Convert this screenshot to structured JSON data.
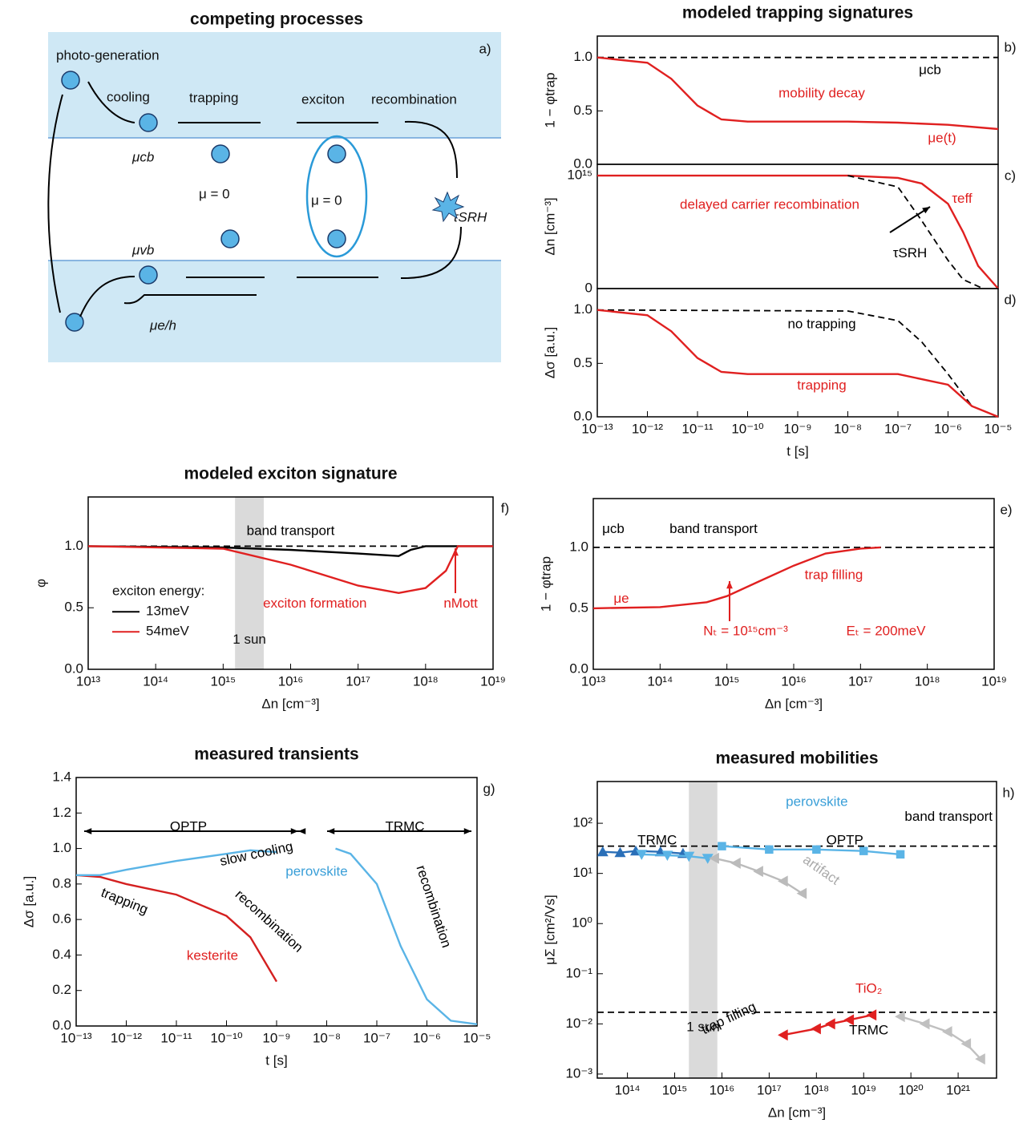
{
  "diagram": {
    "title": "competing processes",
    "panel_label": "a)",
    "labels": {
      "photo_generation": "photo-generation",
      "cooling": "cooling",
      "trapping": "trapping",
      "exciton": "exciton",
      "recombination": "recombination",
      "mu_cb": "μcb",
      "mu_zero_trap": "μ = 0",
      "mu_zero_exciton": "μ = 0",
      "mu_vb": "μvb",
      "mu_eh": "μe/h",
      "tau_srh": "τSRH"
    }
  },
  "chart_data": [
    {
      "type": "line",
      "title": "modeled trapping signatures",
      "panel_label": "b)",
      "ylabel": "1 − φtrap",
      "xscale": "log",
      "xlim": [
        1e-13,
        1e-05
      ],
      "ylim": [
        0,
        1.2
      ],
      "yticks": [
        {
          "value": 0,
          "label": "0.0"
        },
        0.5,
        {
          "value": 1,
          "label": "1.0"
        }
      ],
      "series": [
        {
          "color": "#000000",
          "dash": true,
          "x": [
            1e-13,
            1e-05
          ],
          "values": [
            1,
            1
          ]
        },
        {
          "color": "#e02020",
          "x": [
            1e-13,
            1e-12,
            3e-12,
            1e-11,
            3e-11,
            1e-10,
            1e-08,
            1e-07,
            1e-06,
            1e-05
          ],
          "values": [
            1.0,
            0.95,
            0.8,
            0.55,
            0.42,
            0.4,
            0.4,
            0.39,
            0.37,
            0.33
          ]
        }
      ],
      "annotations": [
        {
          "text": "mobility decay",
          "color": "#e02020"
        },
        {
          "text": "μcb",
          "color": "#000000"
        },
        {
          "text": "μe(t)",
          "color": "#e02020"
        }
      ]
    },
    {
      "type": "line",
      "panel_label": "c)",
      "ylabel": "Δn [cm⁻³]",
      "xscale": "log",
      "xlim": [
        1e-13,
        1e-05
      ],
      "ylim": [
        0,
        1100000000000000.0
      ],
      "yticks": [
        0,
        {
          "value": 1000000000000000.0,
          "label": "10¹⁵"
        }
      ],
      "series": [
        {
          "color": "#e02020",
          "x": [
            1e-13,
            1e-08,
            1e-07,
            3e-07,
            1e-06,
            2e-06,
            4e-06,
            1e-05
          ],
          "values": [
            1000000000000000.0,
            1000000000000000.0,
            980000000000000.0,
            930000000000000.0,
            750000000000000.0,
            500000000000000.0,
            200000000000000.0,
            0
          ]
        },
        {
          "color": "#000000",
          "dash": true,
          "x": [
            1e-08,
            1e-07,
            3e-07,
            1e-06,
            2e-06,
            5e-06
          ],
          "values": [
            1000000000000000.0,
            900000000000000.0,
            600000000000000.0,
            250000000000000.0,
            80000000000000.0,
            0
          ]
        }
      ],
      "annotations": [
        {
          "text": "delayed carrier recombination",
          "color": "#e02020"
        },
        {
          "text": "τeff",
          "color": "#e02020"
        },
        {
          "text": "τSRH",
          "color": "#000000"
        }
      ]
    },
    {
      "type": "line",
      "panel_label": "d)",
      "ylabel": "Δσ [a.u.]",
      "xlabel": "t [s]",
      "xscale": "log",
      "xlim": [
        1e-13,
        1e-05
      ],
      "ylim": [
        0,
        1.2
      ],
      "yticks": [
        {
          "value": 0,
          "label": "0.0"
        },
        0.5,
        {
          "value": 1,
          "label": "1.0"
        }
      ],
      "xticks": [
        {
          "value": 1e-13,
          "label": "10⁻¹³"
        },
        {
          "value": 1e-12,
          "label": "10⁻¹²"
        },
        {
          "value": 1e-11,
          "label": "10⁻¹¹"
        },
        {
          "value": 1e-10,
          "label": "10⁻¹⁰"
        },
        {
          "value": 1e-09,
          "label": "10⁻⁹"
        },
        {
          "value": 1e-08,
          "label": "10⁻⁸"
        },
        {
          "value": 1e-07,
          "label": "10⁻⁷"
        },
        {
          "value": 1e-06,
          "label": "10⁻⁶"
        },
        {
          "value": 1e-05,
          "label": "10⁻⁵"
        }
      ],
      "series": [
        {
          "color": "#000000",
          "dash": true,
          "x": [
            1e-13,
            1e-08,
            1e-07,
            3e-07,
            1e-06,
            3e-06,
            1e-05
          ],
          "values": [
            1.0,
            0.99,
            0.9,
            0.7,
            0.4,
            0.1,
            0
          ]
        },
        {
          "color": "#e02020",
          "x": [
            1e-13,
            1e-12,
            3e-12,
            1e-11,
            3e-11,
            1e-10,
            1e-08,
            1e-07,
            1e-06,
            3e-06,
            1e-05
          ],
          "values": [
            1.0,
            0.95,
            0.8,
            0.55,
            0.42,
            0.4,
            0.4,
            0.4,
            0.3,
            0.1,
            0
          ]
        }
      ],
      "annotations": [
        {
          "text": "no trapping",
          "color": "#000000"
        },
        {
          "text": "trapping",
          "color": "#e02020"
        }
      ]
    },
    {
      "type": "line",
      "title": "modeled exciton signature",
      "panel_label": "f)",
      "ylabel": "φ",
      "xlabel": "Δn [cm⁻³]",
      "xscale": "log",
      "xlim": [
        10000000000000.0,
        1e+19
      ],
      "ylim": [
        0,
        1.4
      ],
      "yticks": [
        {
          "value": 0,
          "label": "0.0"
        },
        0.5,
        {
          "value": 1,
          "label": "1.0"
        }
      ],
      "xticks": [
        {
          "value": 10000000000000.0,
          "label": "10¹³"
        },
        {
          "value": 100000000000000.0,
          "label": "10¹⁴"
        },
        {
          "value": 1000000000000000.0,
          "label": "10¹⁵"
        },
        {
          "value": 1e+16,
          "label": "10¹⁶"
        },
        {
          "value": 1e+17,
          "label": "10¹⁷"
        },
        {
          "value": 1e+18,
          "label": "10¹⁸"
        },
        {
          "value": 1e+19,
          "label": "10¹⁹"
        }
      ],
      "highlight": {
        "x": [
          1500000000000000.0,
          4000000000000000.0
        ],
        "label": "1 sun"
      },
      "legend_title": "exciton energy:",
      "series": [
        {
          "color": "#000000",
          "dash": true,
          "x": [
            10000000000000.0,
            1e+19
          ],
          "values": [
            1,
            1
          ]
        },
        {
          "name": "13meV",
          "color": "#000000",
          "x": [
            10000000000000.0,
            1000000000000000.0,
            1e+16,
            1e+17,
            4e+17,
            6e+17,
            1e+18,
            1e+19
          ],
          "values": [
            1,
            0.99,
            0.97,
            0.94,
            0.92,
            0.97,
            1,
            1
          ]
        },
        {
          "name": "54meV",
          "color": "#e02020",
          "x": [
            10000000000000.0,
            1000000000000000.0,
            1e+16,
            1e+17,
            4e+17,
            1e+18,
            2e+18,
            3e+18,
            1e+19
          ],
          "values": [
            1,
            0.98,
            0.85,
            0.68,
            0.62,
            0.66,
            0.8,
            1,
            1
          ]
        }
      ],
      "annotations": [
        {
          "text": "band transport",
          "color": "#000000"
        },
        {
          "text": "exciton formation",
          "color": "#e02020"
        },
        {
          "text": "nMott",
          "color": "#e02020"
        }
      ]
    },
    {
      "type": "line",
      "panel_label": "e)",
      "ylabel": "1 − φtrap",
      "xlabel": "Δn [cm⁻³]",
      "xscale": "log",
      "xlim": [
        10000000000000.0,
        1e+19
      ],
      "ylim": [
        0,
        1.4
      ],
      "yticks": [
        {
          "value": 0,
          "label": "0.0"
        },
        0.5,
        {
          "value": 1,
          "label": "1.0"
        }
      ],
      "xticks": [
        {
          "value": 10000000000000.0,
          "label": "10¹³"
        },
        {
          "value": 100000000000000.0,
          "label": "10¹⁴"
        },
        {
          "value": 1000000000000000.0,
          "label": "10¹⁵"
        },
        {
          "value": 1e+16,
          "label": "10¹⁶"
        },
        {
          "value": 1e+17,
          "label": "10¹⁷"
        },
        {
          "value": 1e+18,
          "label": "10¹⁸"
        },
        {
          "value": 1e+19,
          "label": "10¹⁹"
        }
      ],
      "series": [
        {
          "color": "#000000",
          "dash": true,
          "x": [
            10000000000000.0,
            1e+19
          ],
          "values": [
            1,
            1
          ]
        },
        {
          "color": "#e02020",
          "x": [
            10000000000000.0,
            100000000000000.0,
            500000000000000.0,
            1000000000000000.0,
            3000000000000000.0,
            1e+16,
            3e+16,
            1e+17,
            2e+17
          ],
          "values": [
            0.5,
            0.51,
            0.55,
            0.6,
            0.72,
            0.85,
            0.95,
            0.99,
            1.0
          ]
        }
      ],
      "annotations": [
        {
          "text": "μcb",
          "color": "#000000"
        },
        {
          "text": "band transport",
          "color": "#000000"
        },
        {
          "text": "trap filling",
          "color": "#e02020"
        },
        {
          "text": "μe",
          "color": "#e02020"
        },
        {
          "text": "Nₜ = 10¹⁵cm⁻³",
          "color": "#e02020"
        },
        {
          "text": "Eₜ = 200meV",
          "color": "#e02020"
        }
      ]
    },
    {
      "type": "line",
      "title": "measured transients",
      "panel_label": "g)",
      "ylabel": "Δσ [a.u.]",
      "xlabel": "t [s]",
      "xscale": "log",
      "xlim": [
        1e-13,
        1e-05
      ],
      "ylim": [
        0,
        1.4
      ],
      "yticks": [
        {
          "value": 0,
          "label": "0.0"
        },
        0.2,
        0.4,
        0.6,
        0.8,
        {
          "value": 1,
          "label": "1.0"
        },
        1.2,
        1.4
      ],
      "xticks": [
        {
          "value": 1e-13,
          "label": "10⁻¹³"
        },
        {
          "value": 1e-12,
          "label": "10⁻¹²"
        },
        {
          "value": 1e-11,
          "label": "10⁻¹¹"
        },
        {
          "value": 1e-10,
          "label": "10⁻¹⁰"
        },
        {
          "value": 1e-09,
          "label": "10⁻⁹"
        },
        {
          "value": 1e-08,
          "label": "10⁻⁸"
        },
        {
          "value": 1e-07,
          "label": "10⁻⁷"
        },
        {
          "value": 1e-06,
          "label": "10⁻⁶"
        },
        {
          "value": 1e-05,
          "label": "10⁻⁵"
        }
      ],
      "series": [
        {
          "color": "#d42020",
          "x": [
            1e-13,
            3e-13,
            1e-12,
            1e-11,
            1e-10,
            3e-10,
            1e-09
          ],
          "values": [
            0.85,
            0.84,
            0.8,
            0.74,
            0.62,
            0.5,
            0.25
          ]
        },
        {
          "color": "#5ab4e6",
          "x": [
            1e-13,
            3e-13,
            1e-12,
            1e-11,
            1e-10,
            3e-10,
            1e-09
          ],
          "values": [
            0.85,
            0.85,
            0.88,
            0.93,
            0.97,
            0.99,
            0.98
          ]
        },
        {
          "color": "#5ab4e6",
          "x": [
            1.5e-08,
            3e-08,
            1e-07,
            3e-07,
            1e-06,
            3e-06,
            1e-05
          ],
          "values": [
            1.0,
            0.97,
            0.8,
            0.45,
            0.15,
            0.03,
            0.01
          ]
        }
      ],
      "annotations": [
        {
          "text": "OPTP",
          "color": "#000000"
        },
        {
          "text": "TRMC",
          "color": "#000000"
        },
        {
          "text": "slow cooling",
          "color": "#000000"
        },
        {
          "text": "perovskite",
          "color": "#3a9fd8"
        },
        {
          "text": "trapping",
          "color": "#000000"
        },
        {
          "text": "recombination",
          "color": "#000000"
        },
        {
          "text": "kesterite",
          "color": "#e02020"
        },
        {
          "text": "recombination",
          "color": "#000000"
        }
      ]
    },
    {
      "type": "line",
      "title": "measured mobilities",
      "panel_label": "h)",
      "ylabel": "μΣ [cm²/Vs]",
      "xlabel": "Δn [cm⁻³]",
      "xscale": "log",
      "yscale": "log",
      "xlim": [
        23000000000000.0,
        6.5e+21
      ],
      "ylim": [
        0.00083,
        680
      ],
      "xticks": [
        {
          "value": 100000000000000.0,
          "label": "10¹⁴"
        },
        {
          "value": 1000000000000000.0,
          "label": "10¹⁵"
        },
        {
          "value": 1e+16,
          "label": "10¹⁶"
        },
        {
          "value": 1e+17,
          "label": "10¹⁷"
        },
        {
          "value": 1e+18,
          "label": "10¹⁸"
        },
        {
          "value": 1e+19,
          "label": "10¹⁹"
        },
        {
          "value": 1e+20,
          "label": "10²⁰"
        },
        {
          "value": 1e+21,
          "label": "10²¹"
        }
      ],
      "yticks": [
        {
          "value": 0.001,
          "label": "10⁻³"
        },
        {
          "value": 0.01,
          "label": "10⁻²"
        },
        {
          "value": 0.1,
          "label": "10⁻¹"
        },
        {
          "value": 1,
          "label": "10⁰"
        },
        {
          "value": 10,
          "label": "10¹"
        },
        {
          "value": 100,
          "label": "10²"
        }
      ],
      "highlight": {
        "x": [
          2000000000000000.0,
          8000000000000000.0
        ],
        "label": "1 sun"
      },
      "series": [
        {
          "color": "#000000",
          "dash": true,
          "x": [
            23000000000000.0,
            6.5e+21
          ],
          "values": [
            35,
            35
          ]
        },
        {
          "color": "#000000",
          "dash": true,
          "x": [
            23000000000000.0,
            6.5e+21
          ],
          "values": [
            0.017,
            0.017
          ]
        },
        {
          "color": "#2a6fb8",
          "marker": "triangle-up",
          "x": [
            30000000000000.0,
            70000000000000.0,
            150000000000000.0,
            500000000000000.0,
            1500000000000000.0
          ],
          "values": [
            27,
            26,
            28,
            27,
            25
          ]
        },
        {
          "color": "#5ab4e6",
          "marker": "triangle-down",
          "x": [
            200000000000000.0,
            700000000000000.0,
            2000000000000000.0,
            5000000000000000.0
          ],
          "values": [
            24,
            23,
            22,
            20
          ]
        },
        {
          "color": "#5ab4e6",
          "marker": "square",
          "x": [
            1e+16,
            1e+17,
            1e+18,
            1e+19,
            6e+19
          ],
          "values": [
            35,
            30,
            30,
            28,
            24
          ]
        },
        {
          "color": "#bbbbbb",
          "marker": "triangle-left",
          "x": [
            7000000000000000.0,
            2e+16,
            6e+16,
            2e+17,
            5e+17
          ],
          "values": [
            20,
            16,
            11,
            7,
            4
          ]
        },
        {
          "color": "#e02020",
          "marker": "triangle-left",
          "x": [
            2e+17,
            1e+18,
            2e+18,
            5e+18,
            1.5e+19
          ],
          "values": [
            0.006,
            0.008,
            0.01,
            0.012,
            0.015
          ]
        },
        {
          "color": "#c0c0c0",
          "marker": "triangle-left",
          "x": [
            6e+19,
            2e+20,
            6e+20,
            1.5e+21,
            3e+21
          ],
          "values": [
            0.014,
            0.01,
            0.007,
            0.004,
            0.002
          ]
        }
      ],
      "annotations": [
        {
          "text": "perovskite",
          "color": "#3a9fd8"
        },
        {
          "text": "band transport",
          "color": "#000000"
        },
        {
          "text": "TRMC",
          "color": "#000000"
        },
        {
          "text": "OPTP",
          "color": "#000000"
        },
        {
          "text": "artifact",
          "color": "#aaaaaa"
        },
        {
          "text": "TiO₂",
          "color": "#e02020"
        },
        {
          "text": "trap filling",
          "color": "#000000"
        },
        {
          "text": "TRMC",
          "color": "#000000"
        }
      ]
    }
  ]
}
